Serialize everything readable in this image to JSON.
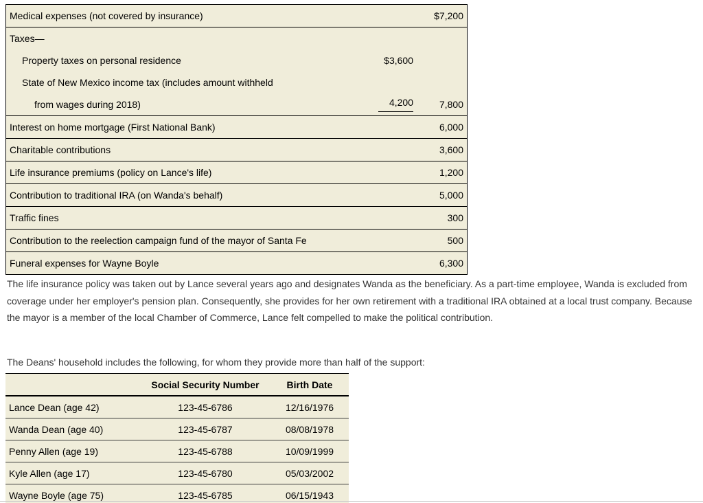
{
  "colors": {
    "table_background": "#f0edda",
    "paragraph_text": "#333333",
    "table_text": "#000000"
  },
  "expense_table": {
    "rows": [
      {
        "lines": [
          {
            "text": "Medical expenses (not covered by insurance)",
            "right": "$7,200"
          }
        ]
      },
      {
        "lines": [
          {
            "text": "Taxes—"
          },
          {
            "text": "Property taxes on personal residence",
            "mid": "$3,600"
          },
          {
            "text": "State of New Mexico income tax (includes amount withheld"
          },
          {
            "text": "from wages during 2018)",
            "mid": "4,200",
            "mid_underlined": true,
            "right": "7,800"
          }
        ]
      },
      {
        "lines": [
          {
            "text": "Interest on home mortgage (First National Bank)",
            "right": "6,000"
          }
        ]
      },
      {
        "lines": [
          {
            "text": "Charitable contributions",
            "right": "3,600"
          }
        ]
      },
      {
        "lines": [
          {
            "text": "Life insurance premiums (policy on Lance's life)",
            "right": "1,200"
          }
        ]
      },
      {
        "lines": [
          {
            "text": "Contribution to traditional IRA (on Wanda's behalf)",
            "right": "5,000"
          }
        ]
      },
      {
        "lines": [
          {
            "text": "Traffic fines",
            "right": "300"
          }
        ]
      },
      {
        "lines": [
          {
            "text": "Contribution to the reelection campaign fund of the mayor of Santa Fe",
            "right": "500"
          }
        ]
      },
      {
        "lines": [
          {
            "text": "Funeral expenses for Wayne Boyle",
            "right": "6,300"
          }
        ]
      }
    ]
  },
  "paragraphs": [
    "The life insurance policy was taken out by Lance several years ago and designates Wanda as the beneficiary. As a part-time employee, Wanda is excluded from coverage under her employer's pension plan. Consequently, she provides for her own retirement with a traditional IRA obtained at a local trust company. Because the mayor is a member of the local Chamber of Commerce, Lance felt compelled to make the political contribution.",
    "The Deans' household includes the following, for whom they provide more than half of the support:"
  ],
  "household_table": {
    "headers": [
      "",
      "Social Security Number",
      "Birth Date"
    ],
    "rows": [
      {
        "name": "Lance Dean (age 42)",
        "ssn": "123-45-6786",
        "birth_date": "12/16/1976"
      },
      {
        "name": "Wanda Dean (age 40)",
        "ssn": "123-45-6787",
        "birth_date": "08/08/1978"
      },
      {
        "name": "Penny Allen (age 19)",
        "ssn": "123-45-6788",
        "birth_date": "10/09/1999"
      },
      {
        "name": "Kyle Allen (age 17)",
        "ssn": "123-45-6780",
        "birth_date": "05/03/2002"
      },
      {
        "name": "Wayne Boyle (age 75)",
        "ssn": "123-45-6785",
        "birth_date": "06/15/1943"
      }
    ]
  }
}
